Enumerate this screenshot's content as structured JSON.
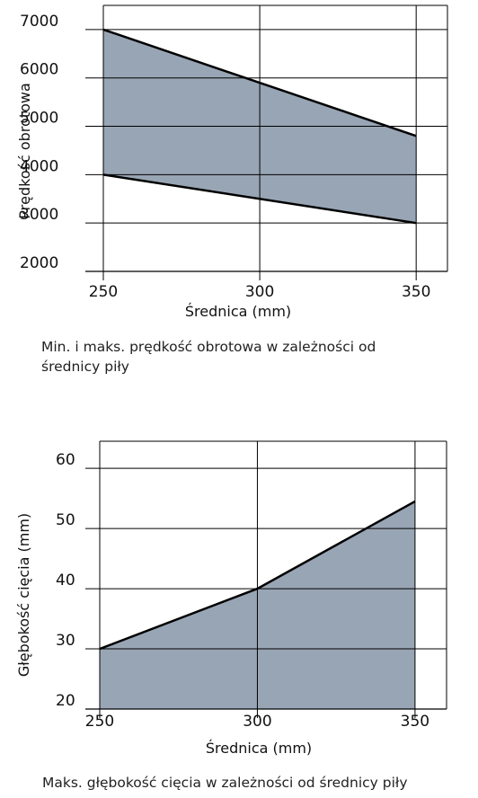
{
  "colors": {
    "fill": "#98a5b4",
    "line": "#000000",
    "grid": "#000000"
  },
  "chart_data": [
    {
      "type": "area",
      "x": [
        250,
        350
      ],
      "series": [
        {
          "values": [
            4000,
            3000
          ]
        },
        {
          "values": [
            7000,
            4800
          ]
        }
      ],
      "xticks": [
        250,
        300,
        350
      ],
      "yticks": [
        2000,
        3000,
        4000,
        5000,
        6000,
        7000
      ],
      "xlim": [
        250,
        360
      ],
      "ylim": [
        2000,
        7500
      ],
      "xlabel": "Średnica (mm)",
      "ylabel": "Prędkość obrotowa",
      "caption": "Min. i maks. prędkość obrotowa w zależności od średnicy piły",
      "grid": true
    },
    {
      "type": "area",
      "x": [
        250,
        300,
        350
      ],
      "series": [
        {
          "values": [
            30,
            40,
            54.5
          ]
        }
      ],
      "xticks": [
        250,
        300,
        350
      ],
      "yticks": [
        20,
        30,
        40,
        50,
        60
      ],
      "xlim": [
        250,
        360
      ],
      "ylim": [
        20,
        64.5
      ],
      "xlabel": "Średnica (mm)",
      "ylabel": "Głębokość cięcia (mm)",
      "caption": "Maks. głębokość cięcia w zależności od średnicy piły",
      "grid": true
    }
  ]
}
